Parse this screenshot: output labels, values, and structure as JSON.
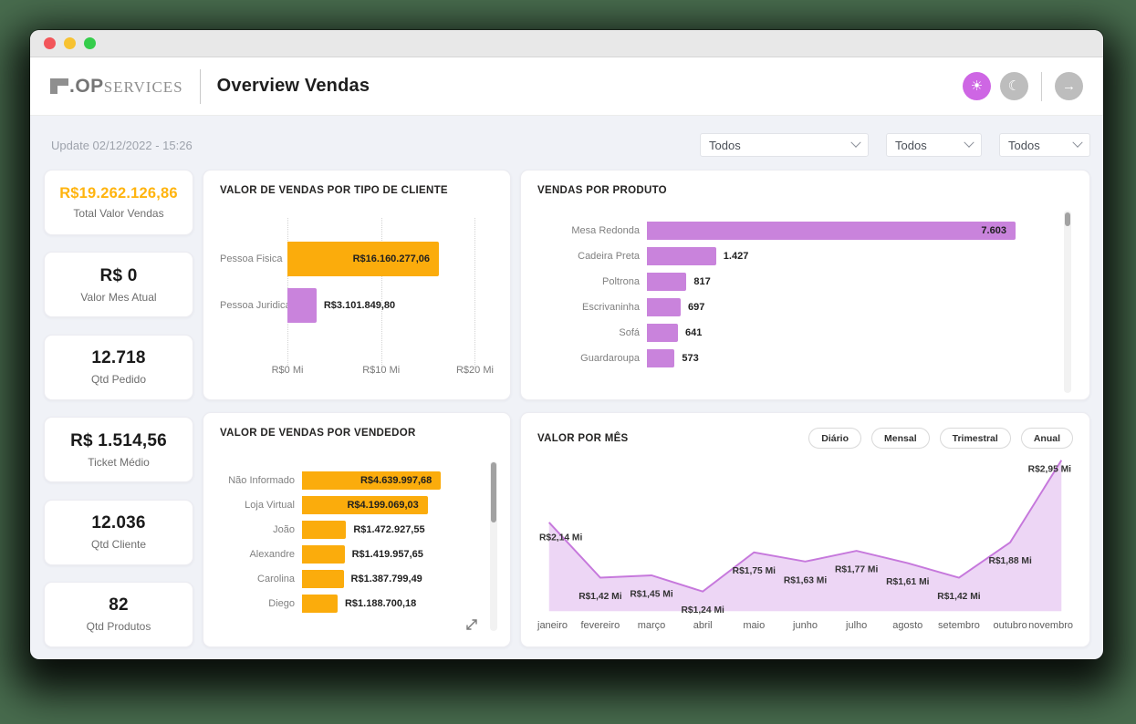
{
  "window": {
    "traffic_lights": [
      {
        "name": "close"
      },
      {
        "name": "minimize"
      },
      {
        "name": "zoom"
      }
    ]
  },
  "header": {
    "logo": {
      "dot_op": ".OP",
      "services": "SERVICES"
    },
    "title": "Overview Vendas",
    "actions": [
      {
        "name": "theme-light",
        "icon": "sun-icon",
        "glyph": "☀",
        "active": true
      },
      {
        "name": "theme-dark",
        "icon": "moon-icon",
        "glyph": "☾",
        "active": false
      },
      {
        "name": "forward",
        "icon": "arrow-right-icon",
        "glyph": "→",
        "active": false
      }
    ]
  },
  "toolbar": {
    "update_text": "Update 02/12/2022 - 15:26",
    "filters": [
      {
        "value": "Todos"
      },
      {
        "value": "Todos"
      },
      {
        "value": "Todos"
      }
    ]
  },
  "kpis": [
    {
      "value": "R$19.262.126,86",
      "label": "Total Valor Vendas",
      "accent": true
    },
    {
      "value": "R$ 0",
      "label": "Valor Mes Atual",
      "accent": false
    },
    {
      "value": "12.718",
      "label": "Qtd Pedido",
      "accent": false
    },
    {
      "value": "R$ 1.514,56",
      "label": "Ticket Médio",
      "accent": false
    },
    {
      "value": "12.036",
      "label": "Qtd Cliente",
      "accent": false
    },
    {
      "value": "82",
      "label": "Qtd Produtos",
      "accent": false
    }
  ],
  "chart_data": [
    {
      "id": "tipo_cliente",
      "type": "bar",
      "orientation": "horizontal",
      "title": "VALOR DE VENDAS POR TIPO DE CLIENTE",
      "categories": [
        "Pessoa Fisica",
        "Pessoa Juridica"
      ],
      "values": [
        16160277.06,
        3101849.8
      ],
      "value_labels": [
        "R$16.160.277,06",
        "R$3.101.849,80"
      ],
      "label_inside": [
        true,
        false
      ],
      "bar_colors": [
        "#FBAC0C",
        "#C983DC"
      ],
      "xlim": [
        0,
        22000000
      ],
      "x_ticks": [
        {
          "label": "R$0 Mi",
          "value": 0
        },
        {
          "label": "R$10 Mi",
          "value": 10000000
        },
        {
          "label": "R$20 Mi",
          "value": 20000000
        }
      ],
      "grid": "dotted-vertical"
    },
    {
      "id": "produto",
      "type": "bar",
      "orientation": "horizontal",
      "title": "VENDAS POR PRODUTO",
      "categories": [
        "Mesa Redonda",
        "Cadeira Preta",
        "Poltrona",
        "Escrivaninha",
        "Sofá",
        "Guardaroupa"
      ],
      "values": [
        7603,
        1427,
        817,
        697,
        641,
        573
      ],
      "value_labels": [
        "7.603",
        "1.427",
        "817",
        "697",
        "641",
        "573"
      ],
      "label_inside": [
        true,
        false,
        false,
        false,
        false,
        false
      ],
      "bar_colors": [
        "#C983DC",
        "#C983DC",
        "#C983DC",
        "#C983DC",
        "#C983DC",
        "#C983DC"
      ],
      "xlim": [
        0,
        8300
      ],
      "scrollable": true
    },
    {
      "id": "vendedor",
      "type": "bar",
      "orientation": "horizontal",
      "title": "VALOR DE VENDAS POR VENDEDOR",
      "categories": [
        "Não Informado",
        "Loja Virtual",
        "João",
        "Alexandre",
        "Carolina",
        "Diego"
      ],
      "values": [
        4639997.68,
        4199069.03,
        1472927.55,
        1419957.65,
        1387799.49,
        1188700.18
      ],
      "value_labels": [
        "R$4.639.997,68",
        "R$4.199.069,03",
        "R$1.472.927,55",
        "R$1.419.957,65",
        "R$1.387.799,49",
        "R$1.188.700,18"
      ],
      "label_inside": [
        true,
        true,
        false,
        false,
        false,
        false
      ],
      "bar_colors": [
        "#FBAC0C",
        "#FBAC0C",
        "#FBAC0C",
        "#FBAC0C",
        "#FBAC0C",
        "#FBAC0C"
      ],
      "xlim": [
        0,
        6400000
      ],
      "scrollable": true,
      "expandable": true
    },
    {
      "id": "valor_por_mes",
      "type": "area",
      "title": "VALOR POR MÊS",
      "period_buttons": [
        "Diário",
        "Mensal",
        "Trimestral",
        "Anual"
      ],
      "x": [
        "janeiro",
        "fevereiro",
        "março",
        "abril",
        "maio",
        "junho",
        "julho",
        "agosto",
        "setembro",
        "outubro",
        "novembro"
      ],
      "values_mi": [
        2.14,
        1.42,
        1.45,
        1.24,
        1.75,
        1.63,
        1.77,
        1.61,
        1.42,
        1.88,
        2.95
      ],
      "value_labels": [
        "R$2,14 Mi",
        "R$1,42 Mi",
        "R$1,45 Mi",
        "R$1,24 Mi",
        "R$1,75 Mi",
        "R$1,63 Mi",
        "R$1,77 Mi",
        "R$1,61 Mi",
        "R$1,42 Mi",
        "R$1,88 Mi",
        "R$2,95 Mi"
      ],
      "ylim_mi": [
        0.98,
        2.95
      ],
      "fill_color": "#EDD6F5",
      "line_color": "#C678DC",
      "grid": "off"
    }
  ],
  "colors": {
    "accent_orange": "#FBAC0C",
    "accent_purple": "#C983DC",
    "kpi_orange": "#FFB40F",
    "theme_button_purple": "#CE66E4",
    "body_background": "#F0F2F7"
  }
}
